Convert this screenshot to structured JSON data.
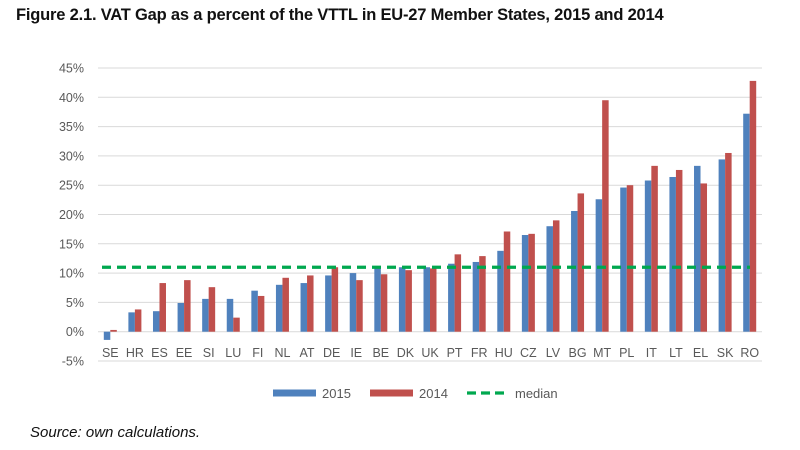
{
  "title": "Figure 2.1. VAT Gap as a percent of the VTTL in EU-27 Member States, 2015 and 2014",
  "source": "Source: own calculations.",
  "chart_data": {
    "type": "bar",
    "title": "Figure 2.1. VAT Gap as a percent of the VTTL in EU-27 Member States, 2015 and 2014",
    "xlabel": "",
    "ylabel": "",
    "ylim": [
      -5,
      45
    ],
    "yticks": [
      -5,
      0,
      5,
      10,
      15,
      20,
      25,
      30,
      35,
      40,
      45
    ],
    "ytick_labels": [
      "-5%",
      "0%",
      "5%",
      "10%",
      "15%",
      "20%",
      "25%",
      "30%",
      "35%",
      "40%",
      "45%"
    ],
    "grid": true,
    "legend_position": "bottom",
    "categories": [
      "SE",
      "HR",
      "ES",
      "EE",
      "SI",
      "LU",
      "FI",
      "NL",
      "AT",
      "DE",
      "IE",
      "BE",
      "DK",
      "UK",
      "PT",
      "FR",
      "HU",
      "CZ",
      "LV",
      "BG",
      "MT",
      "PL",
      "IT",
      "LT",
      "EL",
      "SK",
      "RO"
    ],
    "series": [
      {
        "name": "2015",
        "color": "#4f81bd",
        "values": [
          -1.4,
          3.3,
          3.5,
          4.9,
          5.6,
          5.6,
          7.0,
          8.0,
          8.3,
          9.6,
          10.0,
          10.8,
          11.0,
          11.0,
          11.6,
          11.9,
          13.8,
          16.5,
          18.0,
          20.6,
          22.6,
          24.6,
          25.8,
          26.4,
          28.3,
          29.4,
          37.2
        ]
      },
      {
        "name": "2014",
        "color": "#c0504d",
        "values": [
          0.3,
          3.8,
          8.3,
          8.8,
          7.6,
          2.4,
          6.1,
          9.2,
          9.6,
          11.0,
          8.8,
          9.8,
          10.5,
          10.8,
          13.2,
          12.9,
          17.1,
          16.7,
          19.0,
          23.6,
          39.5,
          25.0,
          28.3,
          27.6,
          25.3,
          30.5,
          42.8
        ]
      }
    ],
    "median": {
      "name": "median",
      "value": 11.0,
      "color": "#00a84f",
      "style": "dashed"
    }
  }
}
